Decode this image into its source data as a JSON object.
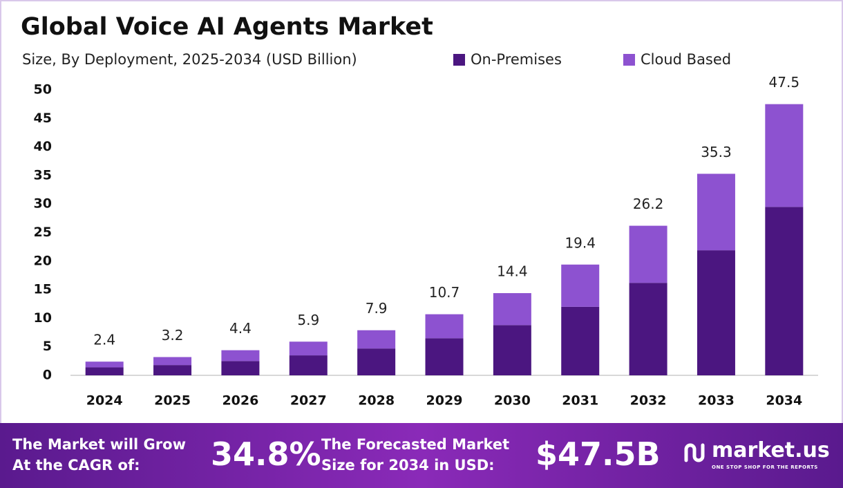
{
  "chart_data": {
    "type": "stacked-bar",
    "title": "Global Voice AI Agents Market",
    "subtitle": "Size, By Deployment, 2025-2034 (USD Billion)",
    "categories": [
      "2024",
      "2025",
      "2026",
      "2027",
      "2028",
      "2029",
      "2030",
      "2031",
      "2032",
      "2033",
      "2034"
    ],
    "series": [
      {
        "name": "On-Premises",
        "color": "#4b1680",
        "values": [
          1.4,
          1.8,
          2.5,
          3.5,
          4.7,
          6.5,
          8.8,
          12.0,
          16.2,
          21.9,
          29.5
        ]
      },
      {
        "name": "Cloud Based",
        "color": "#8d52d0",
        "values": [
          1.0,
          1.4,
          1.9,
          2.4,
          3.2,
          4.2,
          5.6,
          7.4,
          10.0,
          13.4,
          18.0
        ]
      }
    ],
    "totals": [
      2.4,
      3.2,
      4.4,
      5.9,
      7.9,
      10.7,
      14.4,
      19.4,
      26.2,
      35.3,
      47.5
    ],
    "ylim": [
      0,
      50
    ],
    "yticks": [
      0,
      5,
      10,
      15,
      20,
      25,
      30,
      35,
      40,
      45,
      50
    ],
    "grid": false
  },
  "footer": {
    "cagr_text": "The Market will Grow At the CAGR of:",
    "cagr_value": "34.8%",
    "forecast_text": "The Forecasted Market Size for 2034 in USD:",
    "forecast_value": "$47.5B",
    "brand": "market.us",
    "tagline": "ONE STOP SHOP FOR THE REPORTS"
  }
}
